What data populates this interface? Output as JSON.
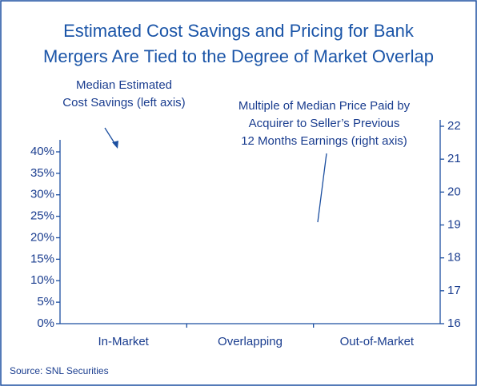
{
  "chart_data": {
    "type": "bar",
    "title": [
      "Estimated Cost Savings and Pricing for Bank",
      "Mergers Are Tied to the Degree of Market Overlap"
    ],
    "categories": [
      "In-Market",
      "Overlapping",
      "Out-of-Market"
    ],
    "ylim": [
      0,
      40
    ],
    "yticks": [
      {
        "value": 0,
        "label": "0%"
      },
      {
        "value": 5,
        "label": "5%"
      },
      {
        "value": 10,
        "label": "10%"
      },
      {
        "value": 15,
        "label": "15%"
      },
      {
        "value": 20,
        "label": "20%"
      },
      {
        "value": 25,
        "label": "25%"
      },
      {
        "value": 30,
        "label": "30%"
      },
      {
        "value": 35,
        "label": "35%"
      },
      {
        "value": 40,
        "label": "40%"
      }
    ],
    "y2lim": [
      16,
      22
    ],
    "y2ticks": [
      16,
      17,
      18,
      19,
      20,
      21,
      22
    ],
    "annotations": [
      [
        "Median Estimated",
        "Cost Savings (left axis)"
      ],
      [
        "Multiple of Median Price Paid by",
        "Acquirer to Seller’s Previous",
        "12 Months Earnings (right axis)"
      ]
    ],
    "source": "Source: SNL Securities",
    "color": "#1c4fa0"
  }
}
